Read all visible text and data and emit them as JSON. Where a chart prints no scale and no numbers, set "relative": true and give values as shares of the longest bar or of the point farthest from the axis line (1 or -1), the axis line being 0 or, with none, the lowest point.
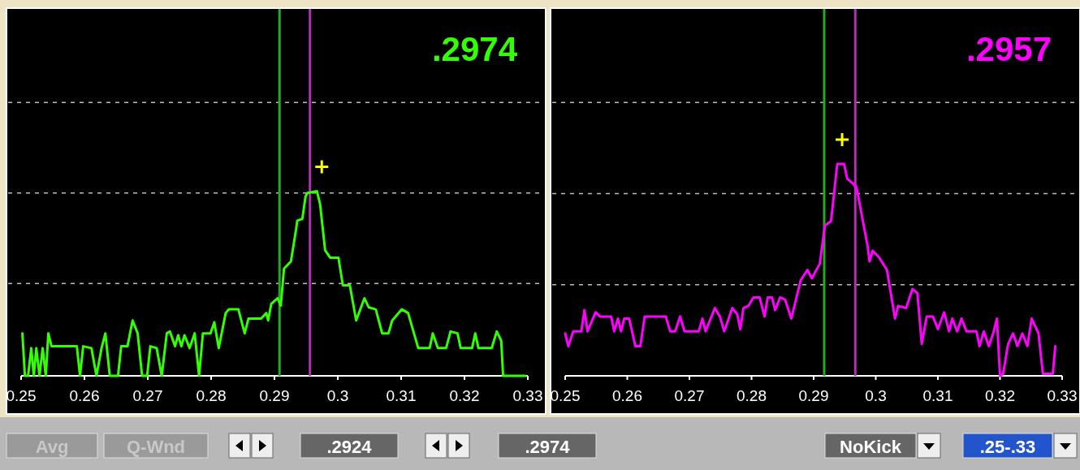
{
  "chart_data": [
    {
      "type": "line",
      "title": ".2974",
      "relative": true,
      "marker": "none",
      "xlim": [
        0.25,
        0.33
      ],
      "xticks": [
        0.25,
        0.26,
        0.27,
        0.28,
        0.29,
        0.3,
        0.31,
        0.32,
        0.33
      ],
      "series": [
        {
          "color": "#33ff00",
          "x": [
            0.2502,
            0.2506,
            0.2511,
            0.2516,
            0.252,
            0.2524,
            0.2529,
            0.2534,
            0.2539,
            0.2543,
            0.2548,
            0.2588,
            0.2593,
            0.2598,
            0.2611,
            0.2619,
            0.2627,
            0.2633,
            0.264,
            0.2653,
            0.2658,
            0.2668,
            0.2676,
            0.2684,
            0.2691,
            0.2699,
            0.2704,
            0.2714,
            0.2722,
            0.273,
            0.2735,
            0.2743,
            0.2748,
            0.2753,
            0.2758,
            0.2766,
            0.2774,
            0.2781,
            0.2787,
            0.2799,
            0.2805,
            0.2812,
            0.2823,
            0.2828,
            0.2843,
            0.2853,
            0.2859,
            0.2879,
            0.2887,
            0.289,
            0.2895,
            0.2905,
            0.291,
            0.2915,
            0.2926,
            0.2934,
            0.2936,
            0.2944,
            0.2949,
            0.2952,
            0.2967,
            0.2972,
            0.298,
            0.2988,
            0.3001,
            0.3008,
            0.3019,
            0.3029,
            0.3042,
            0.3049,
            0.306,
            0.307,
            0.308,
            0.3086,
            0.3101,
            0.3111,
            0.3127,
            0.3145,
            0.315,
            0.3158,
            0.3171,
            0.3178,
            0.3189,
            0.3194,
            0.3212,
            0.3217,
            0.3222,
            0.3243,
            0.3251,
            0.3258,
            0.3261,
            0.3281,
            0.3296
          ],
          "values": [
            0.23,
            0,
            0,
            0.15,
            0,
            0.15,
            0,
            0.15,
            0,
            0.23,
            0.16,
            0.16,
            0,
            0.16,
            0.15,
            0,
            0.15,
            0.23,
            0,
            0,
            0.16,
            0.16,
            0.3,
            0.23,
            0,
            0,
            0.16,
            0.15,
            0,
            0.23,
            0.24,
            0.16,
            0.22,
            0.16,
            0.22,
            0.15,
            0.23,
            0,
            0.23,
            0.23,
            0.29,
            0.15,
            0.34,
            0.36,
            0.36,
            0.23,
            0.31,
            0.31,
            0.34,
            0.3,
            0.39,
            0.42,
            0.38,
            0.58,
            0.62,
            0.79,
            0.84,
            0.85,
            0.97,
            0.99,
            1,
            0.93,
            0.68,
            0.64,
            0.64,
            0.49,
            0.49,
            0.3,
            0.42,
            0.37,
            0.36,
            0.23,
            0.23,
            0.3,
            0.36,
            0.34,
            0.15,
            0.15,
            0.23,
            0.15,
            0.15,
            0.24,
            0.23,
            0.15,
            0.15,
            0.23,
            0.15,
            0.15,
            0.24,
            0.19,
            0,
            0,
            0
          ]
        }
      ],
      "ref_lines": [
        {
          "axis": "y",
          "value": 0.5,
          "color": "#bbbbbb",
          "line_style": "dashed"
        },
        {
          "axis": "y",
          "value": 0.99,
          "color": "#bbbbbb",
          "line_style": "dashed"
        },
        {
          "axis": "y",
          "value": 1.48,
          "color": "#bbbbbb",
          "line_style": "dashed"
        },
        {
          "axis": "x",
          "value": 0.2908,
          "color": "#22aa22"
        },
        {
          "axis": "x",
          "value": 0.2956,
          "color": "#b030b0"
        }
      ]
    },
    {
      "type": "line",
      "title": ".2957",
      "relative": true,
      "marker": "none",
      "xlim": [
        0.25,
        0.33
      ],
      "xticks": [
        0.25,
        0.26,
        0.27,
        0.28,
        0.29,
        0.3,
        0.31,
        0.32,
        0.33
      ],
      "series": [
        {
          "color": "#ff00ff",
          "x": [
            0.25,
            0.2505,
            0.2513,
            0.2526,
            0.2531,
            0.2536,
            0.2549,
            0.2556,
            0.2574,
            0.2579,
            0.2585,
            0.259,
            0.2595,
            0.2603,
            0.2613,
            0.2621,
            0.2628,
            0.2662,
            0.2669,
            0.2677,
            0.2685,
            0.2692,
            0.2715,
            0.2721,
            0.2726,
            0.2741,
            0.2749,
            0.2756,
            0.2769,
            0.2777,
            0.2782,
            0.2787,
            0.2795,
            0.2803,
            0.2813,
            0.2821,
            0.2826,
            0.2833,
            0.2838,
            0.2846,
            0.2854,
            0.2864,
            0.2879,
            0.289,
            0.2897,
            0.291,
            0.2918,
            0.2928,
            0.2938,
            0.2949,
            0.2954,
            0.2962,
            0.2969,
            0.2987,
            0.299,
            0.2995,
            0.3005,
            0.3018,
            0.3031,
            0.3036,
            0.3049,
            0.3059,
            0.3067,
            0.3074,
            0.3082,
            0.3092,
            0.31,
            0.311,
            0.3118,
            0.3123,
            0.3131,
            0.3138,
            0.3146,
            0.3162,
            0.3167,
            0.3174,
            0.3182,
            0.319,
            0.3195,
            0.32,
            0.3205,
            0.3213,
            0.3221,
            0.3228,
            0.3236,
            0.3244,
            0.3251,
            0.3262,
            0.3269,
            0.3285,
            0.3289
          ],
          "values": [
            0.2,
            0.14,
            0.21,
            0.21,
            0.31,
            0.21,
            0.3,
            0.28,
            0.28,
            0.21,
            0.27,
            0.21,
            0.27,
            0.27,
            0.14,
            0.14,
            0.28,
            0.28,
            0.21,
            0.21,
            0.28,
            0.21,
            0.21,
            0.27,
            0.21,
            0.32,
            0.28,
            0.21,
            0.32,
            0.29,
            0.22,
            0.32,
            0.33,
            0.37,
            0.37,
            0.28,
            0.37,
            0.37,
            0.31,
            0.37,
            0.36,
            0.27,
            0.45,
            0.5,
            0.46,
            0.53,
            0.71,
            0.73,
            1,
            1,
            0.93,
            0.91,
            0.89,
            0.61,
            0.54,
            0.59,
            0.56,
            0.5,
            0.27,
            0.33,
            0.32,
            0.41,
            0.39,
            0.15,
            0.28,
            0.28,
            0.22,
            0.3,
            0.21,
            0.27,
            0.21,
            0.27,
            0.21,
            0.21,
            0.14,
            0.21,
            0.14,
            0.21,
            0.27,
            0,
            0.01,
            0.15,
            0.2,
            0.14,
            0.2,
            0.14,
            0.27,
            0.2,
            0.01,
            0.01,
            0.14
          ]
        }
      ],
      "ref_lines": [
        {
          "axis": "y",
          "value": 0.43,
          "color": "#bbbbbb",
          "line_style": "dashed"
        },
        {
          "axis": "y",
          "value": 0.86,
          "color": "#bbbbbb",
          "line_style": "dashed"
        },
        {
          "axis": "y",
          "value": 1.29,
          "color": "#bbbbbb",
          "line_style": "dashed"
        },
        {
          "axis": "x",
          "value": 0.2917,
          "color": "#22aa22"
        },
        {
          "axis": "x",
          "value": 0.2967,
          "color": "#b030b0"
        }
      ]
    },
    {
      "type": "other",
      "annotations": [
        "Avg",
        "Q-Wnd",
        ".2924",
        ".2974",
        "NoKick",
        ".25-.33"
      ]
    }
  ]
}
